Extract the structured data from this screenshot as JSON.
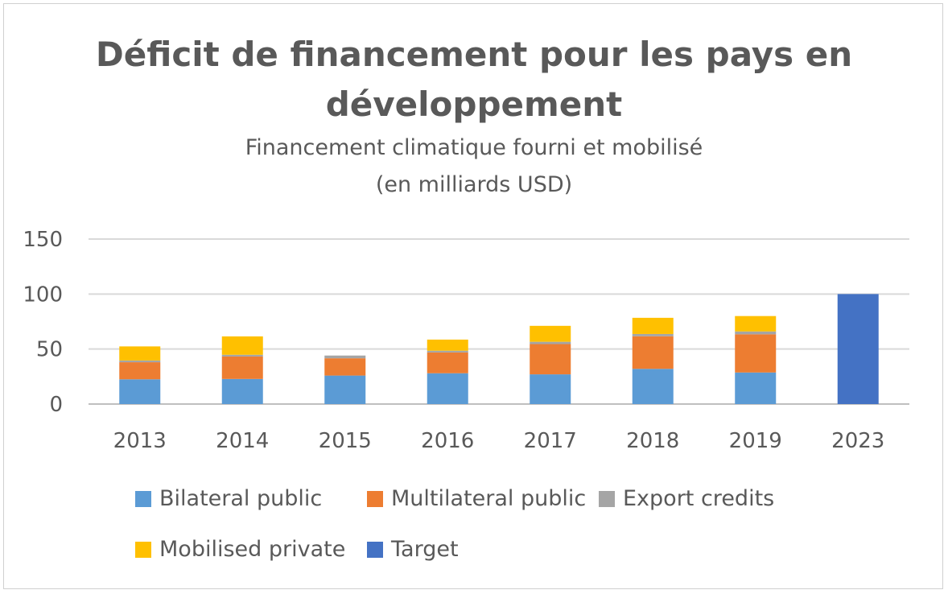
{
  "chart_data": {
    "type": "bar",
    "stacked": true,
    "title": [
      "Déficit de financement pour les pays en",
      "développement"
    ],
    "subtitle": [
      "Financement climatique fourni et mobilisé",
      "(en milliards USD)"
    ],
    "categories": [
      "2013",
      "2014",
      "2015",
      "2016",
      "2017",
      "2018",
      "2019",
      "2023"
    ],
    "ylim": [
      0,
      150
    ],
    "yticks": [
      "0",
      "50",
      "100",
      "150"
    ],
    "grid": true,
    "legend_position": "bottom",
    "series": [
      {
        "name": "Bilateral public",
        "color": "#5B9BD5",
        "values": [
          22.5,
          22.8,
          25.9,
          28.0,
          27.0,
          32.0,
          28.7,
          0
        ]
      },
      {
        "name": "Multilateral public",
        "color": "#ED7D31",
        "values": [
          15.5,
          20.4,
          15.7,
          18.9,
          27.5,
          29.6,
          34.7,
          0
        ]
      },
      {
        "name": "Export credits",
        "color": "#A5A5A5",
        "values": [
          1.6,
          1.6,
          2.5,
          1.6,
          2.1,
          2.1,
          2.6,
          0
        ]
      },
      {
        "name": "Mobilised private",
        "color": "#FFC000",
        "values": [
          12.8,
          16.7,
          0,
          10.1,
          14.5,
          14.7,
          14.0,
          0
        ]
      },
      {
        "name": "Target",
        "color": "#4472C4",
        "values": [
          0,
          0,
          0,
          0,
          0,
          0,
          0,
          100
        ]
      }
    ]
  }
}
